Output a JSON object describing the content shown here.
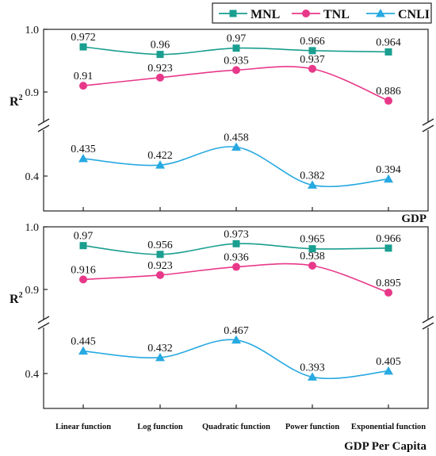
{
  "chart_data": {
    "type": "line",
    "legend": {
      "placement": "top-right",
      "entries": [
        {
          "name": "MNL",
          "color": "#1a9e8f",
          "marker": "square"
        },
        {
          "name": "TNL",
          "color": "#e8388a",
          "marker": "circle"
        },
        {
          "name": "CNLI",
          "color": "#27a9e1",
          "marker": "triangle"
        }
      ]
    },
    "categories": [
      "Linear function",
      "Log function",
      "Quadratic function",
      "Power function",
      "Exponential function"
    ],
    "ylabel": "R",
    "ylabel_sup": "2",
    "y_ticks_upper": [
      "1.0",
      "0.9"
    ],
    "y_ticks_lower": [
      "0.4"
    ],
    "axis_break": true,
    "panels": [
      {
        "xlabel": "GDP",
        "series": [
          {
            "name": "MNL",
            "values": [
              0.972,
              0.96,
              0.97,
              0.966,
              0.964
            ],
            "labels": [
              "0.972",
              "0.96",
              "0.97",
              "0.966",
              "0.964"
            ]
          },
          {
            "name": "TNL",
            "values": [
              0.91,
              0.923,
              0.935,
              0.937,
              0.886
            ],
            "labels": [
              "0.91",
              "0.923",
              "0.935",
              "0.937",
              "0.886"
            ]
          },
          {
            "name": "CNLI",
            "values": [
              0.435,
              0.422,
              0.458,
              0.382,
              0.394
            ],
            "labels": [
              "0.435",
              "0.422",
              "0.458",
              "0.382",
              "0.394"
            ]
          }
        ]
      },
      {
        "xlabel": "GDP Per Capita",
        "series": [
          {
            "name": "MNL",
            "values": [
              0.97,
              0.956,
              0.973,
              0.965,
              0.966
            ],
            "labels": [
              "0.97",
              "0.956",
              "0.973",
              "0.965",
              "0.966"
            ]
          },
          {
            "name": "TNL",
            "values": [
              0.916,
              0.923,
              0.936,
              0.938,
              0.895
            ],
            "labels": [
              "0.916",
              "0.923",
              "0.936",
              "0.938",
              "0.895"
            ]
          },
          {
            "name": "CNLI",
            "values": [
              0.445,
              0.432,
              0.467,
              0.393,
              0.405
            ],
            "labels": [
              "0.445",
              "0.432",
              "0.467",
              "0.393",
              "0.405"
            ]
          }
        ]
      }
    ]
  }
}
